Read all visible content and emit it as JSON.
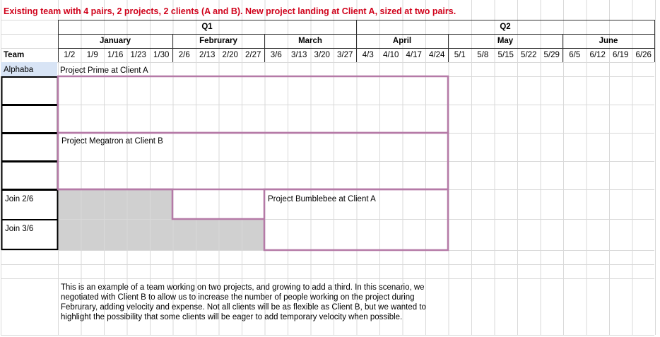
{
  "title": "Existing team with 4 pairs, 2 projects, 2 clients (A and B). New project landing at Client A, sized at two pairs.",
  "quarters": [
    "Q1",
    "Q2"
  ],
  "months": [
    "January",
    "Februrary",
    "March",
    "April",
    "May",
    "June"
  ],
  "team_header": "Team",
  "weeks": [
    "1/2",
    "1/9",
    "1/16",
    "1/23",
    "1/30",
    "2/6",
    "2/13",
    "2/20",
    "2/27",
    "3/6",
    "3/13",
    "3/20",
    "3/27",
    "4/3",
    "4/10",
    "4/17",
    "4/24",
    "5/1",
    "5/8",
    "5/15",
    "5/22",
    "5/29",
    "6/5",
    "6/12",
    "6/19",
    "6/26"
  ],
  "team_name": "Alphaba",
  "join_labels": [
    "Join 2/6",
    "Join 3/6"
  ],
  "projects": {
    "prime": "Project Prime at Client A",
    "megatron": "Project Megatron at Client B",
    "bumblebee": "Project Bumblebee at Client A"
  },
  "note": "This is an example of a team working on two projects, and growing to add a third. In this scenario, we negotiated with Client B to allow us to increase the number of people working on the project during Februrary, adding velocity and expense. Not all clients will be as flexible as Client B, but we wanted to highlight the possibility that some clients will be eager to add temporary velocity when possible.",
  "colors": {
    "title": "#d0021b",
    "project_border": "#b57aa7",
    "team_cell": "#d8e4f5",
    "extra_capacity": "#d0d0d0",
    "grid": "#d9d9d9"
  }
}
